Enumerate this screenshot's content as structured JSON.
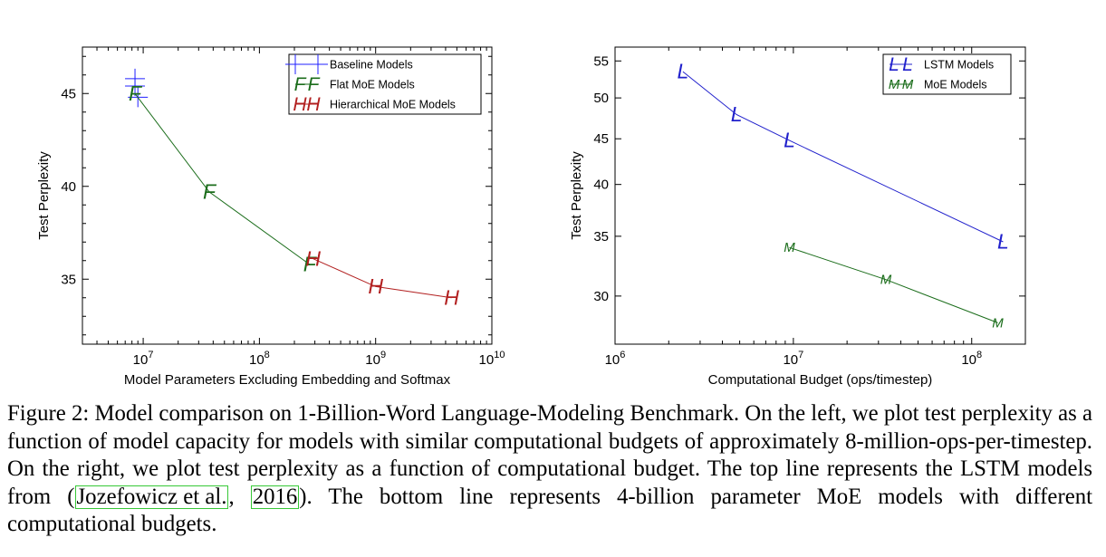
{
  "chart_data": [
    {
      "type": "line",
      "xscale": "log",
      "xlabel": "Model Parameters Excluding Embedding and Softmax",
      "ylabel": "Test Perplexity",
      "xlim": [
        3000000,
        10000000000
      ],
      "ylim": [
        31.5,
        47.5
      ],
      "x_ticks": [
        10000000,
        100000000,
        1000000000,
        10000000000
      ],
      "x_tick_labels": [
        {
          "base": "10",
          "exp": "7"
        },
        {
          "base": "10",
          "exp": "8"
        },
        {
          "base": "10",
          "exp": "9"
        },
        {
          "base": "10",
          "exp": "10"
        }
      ],
      "y_ticks": [
        35,
        40,
        45
      ],
      "y_tick_labels": [
        "35",
        "40",
        "45"
      ],
      "legend_position": "top-right",
      "series": [
        {
          "name": "Baseline Models",
          "marker": "+",
          "color": "#2020ff",
          "line": false,
          "points": [
            [
              8500000,
              45.8
            ],
            [
              8500000,
              45.4
            ],
            [
              9000000,
              44.8
            ]
          ]
        },
        {
          "name": "Flat MoE Models",
          "marker": "F",
          "color": "#1b6d1b",
          "line": true,
          "points": [
            [
              8500000,
              45.0
            ],
            [
              37000000,
              39.7
            ],
            [
              270000000,
              35.8
            ]
          ]
        },
        {
          "name": "Hierarchical MoE Models",
          "marker": "H",
          "color": "#b22020",
          "line": true,
          "points": [
            [
              290000000,
              36.1
            ],
            [
              1000000000,
              34.6
            ],
            [
              4500000000,
              34.0
            ]
          ]
        }
      ]
    },
    {
      "type": "line",
      "xscale": "log",
      "yscale": "log",
      "xlabel": "Computational Budget (ops/timestep)",
      "ylabel": "Test Perplexity",
      "xlim": [
        1000000,
        200000000
      ],
      "ylim": [
        26.5,
        57
      ],
      "x_ticks": [
        1000000,
        10000000,
        100000000
      ],
      "x_tick_labels": [
        {
          "base": "10",
          "exp": "6"
        },
        {
          "base": "10",
          "exp": "7"
        },
        {
          "base": "10",
          "exp": "8"
        }
      ],
      "y_ticks": [
        30,
        35,
        40,
        45,
        50,
        55
      ],
      "y_tick_labels": [
        "30",
        "35",
        "40",
        "45",
        "50",
        "55"
      ],
      "legend_position": "top-right",
      "series": [
        {
          "name": "LSTM Models",
          "marker": "L",
          "color": "#2020cc",
          "line": true,
          "points": [
            [
              2400000,
              53.5
            ],
            [
              4800000,
              47.9
            ],
            [
              9500000,
              44.8
            ],
            [
              150000000,
              34.5
            ]
          ]
        },
        {
          "name": "MoE Models",
          "marker": "M",
          "color": "#1b6d1b",
          "line": true,
          "points": [
            [
              9500000,
              34.0
            ],
            [
              33000000,
              31.3
            ],
            [
              140000000,
              28.0
            ]
          ]
        }
      ]
    }
  ],
  "caption": {
    "part1": "Figure 2: Model comparison on 1-Billion-Word Language-Modeling Benchmark. On the left, we plot test perplexity as a function of model capacity for models with similar computational budgets of approximately 8-million-ops-per-timestep. On the right, we plot test perplexity as a function of computational budget. The top line represents the LSTM models from (",
    "cite_authors": "Jozefowicz et al.",
    "cite_sep": ", ",
    "cite_year": "2016",
    "part2": "). The bottom line represents 4-billion parameter MoE models with different computational budgets."
  }
}
